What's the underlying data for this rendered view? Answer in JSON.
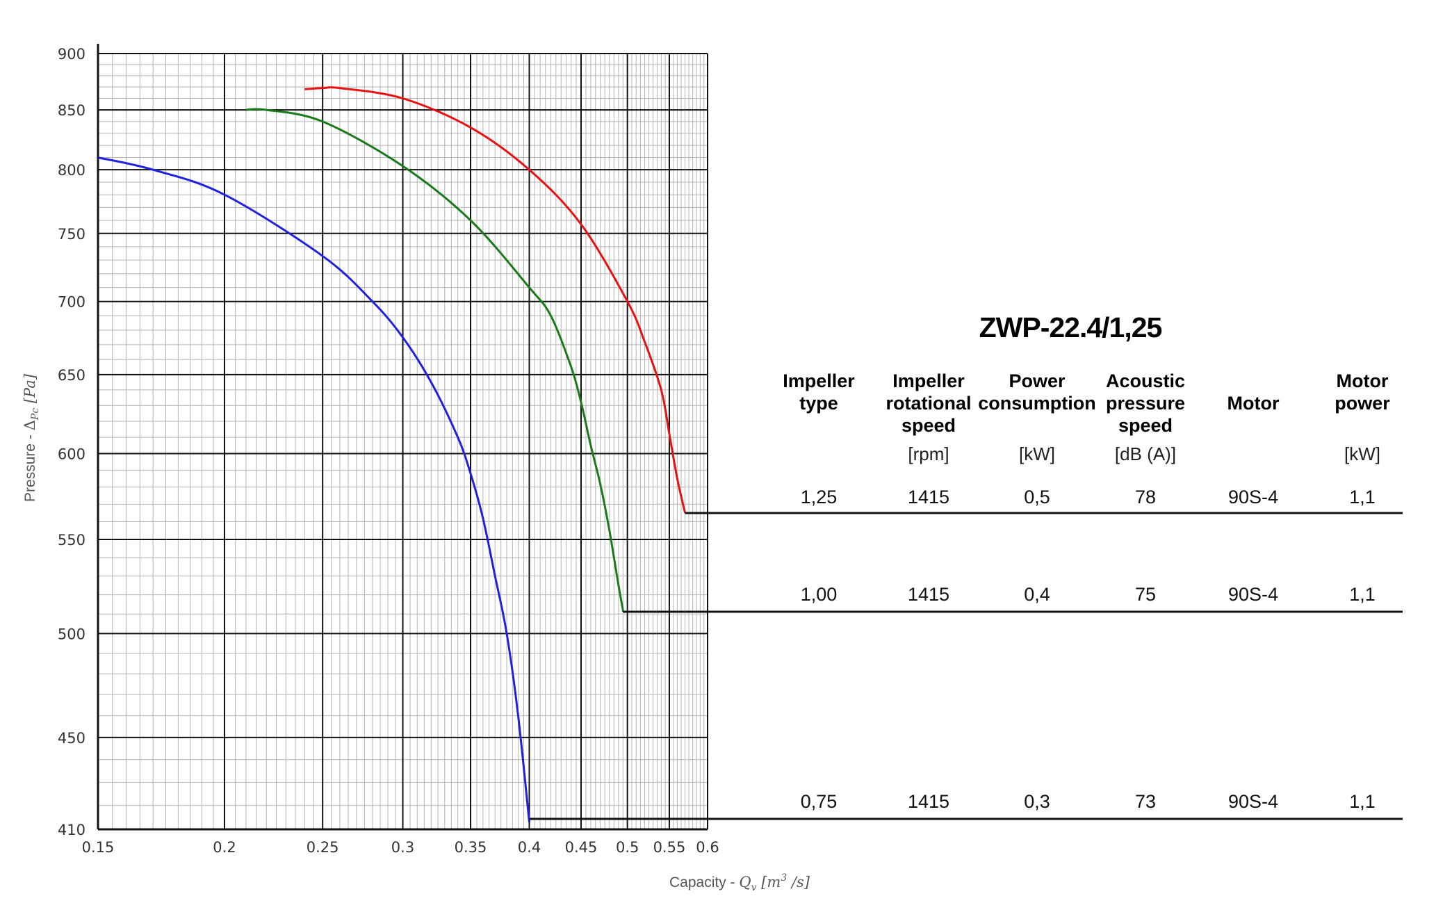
{
  "model": "ZWP-22.4/1,25",
  "table": {
    "headers": [
      "Impeller\ntype",
      "Impeller\nrotational\nspeed",
      "Power\nconsumption",
      "Acoustic\npressure\nspeed",
      "Motor",
      "Motor\npower"
    ],
    "units": [
      "",
      "[rpm]",
      "[kW]",
      "[dB (A)]",
      "",
      "[kW]"
    ],
    "rows": [
      [
        "1,25",
        "1415",
        "0,5",
        "78",
        "90S-4",
        "1,1"
      ],
      [
        "1,00",
        "1415",
        "0,4",
        "75",
        "90S-4",
        "1,1"
      ],
      [
        "0,75",
        "1415",
        "0,3",
        "73",
        "90S-4",
        "1,1"
      ]
    ]
  },
  "chart_data": {
    "type": "line",
    "xscale": "log",
    "yscale": "log",
    "xlim": [
      0.15,
      0.6
    ],
    "ylim": [
      410,
      900
    ],
    "xticks": [
      0.15,
      0.2,
      0.25,
      0.3,
      0.35,
      0.4,
      0.45,
      0.5,
      0.55,
      0.6
    ],
    "xtick_labels": [
      "0.15",
      "0.2",
      "0.25",
      "0.3",
      "0.35",
      "0.4",
      "0.45",
      "0.5",
      "0.55",
      "0.6"
    ],
    "yticks": [
      410,
      450,
      500,
      550,
      600,
      650,
      700,
      750,
      800,
      850,
      900
    ],
    "ytick_labels": [
      "410",
      "450",
      "500",
      "550",
      "600",
      "650",
      "700",
      "750",
      "800",
      "850",
      "900"
    ],
    "xlabel": "Capacity - Q_v [m^3 /s]",
    "xlabel_parts": {
      "main": "Capacity - ",
      "q": "Q",
      "sub": "v",
      "open": " [m",
      "sup": "3",
      "close": " /s]"
    },
    "ylabel": "Pressure - Δ_Pc [Pa]",
    "ylabel_parts": {
      "main": "Pressure - ",
      "delta": "Δ",
      "sub": "Pc",
      "unit": " [Pa]"
    },
    "grid": true,
    "series": [
      {
        "color": "#2020e0",
        "row": 2,
        "x": [
          0.15,
          0.17,
          0.2,
          0.25,
          0.28,
          0.3,
          0.32,
          0.34,
          0.35,
          0.36,
          0.37,
          0.38,
          0.39,
          0.4
        ],
        "y": [
          810,
          800,
          780,
          733,
          700,
          675,
          645,
          610,
          588,
          562,
          530,
          500,
          460,
          413
        ]
      },
      {
        "color": "#1a7a1a",
        "row": 1,
        "x": [
          0.21,
          0.22,
          0.25,
          0.3,
          0.35,
          0.4,
          0.42,
          0.44,
          0.45,
          0.46,
          0.47,
          0.48,
          0.49,
          0.495
        ],
        "y": [
          850,
          850,
          840,
          803,
          760,
          710,
          690,
          655,
          632,
          605,
          582,
          555,
          525,
          512
        ]
      },
      {
        "color": "#e81010",
        "row": 0,
        "x": [
          0.24,
          0.25,
          0.26,
          0.3,
          0.35,
          0.4,
          0.45,
          0.5,
          0.52,
          0.54,
          0.55,
          0.56,
          0.57
        ],
        "y": [
          868,
          869,
          869,
          860,
          835,
          800,
          757,
          700,
          672,
          640,
          612,
          585,
          565
        ]
      }
    ]
  }
}
